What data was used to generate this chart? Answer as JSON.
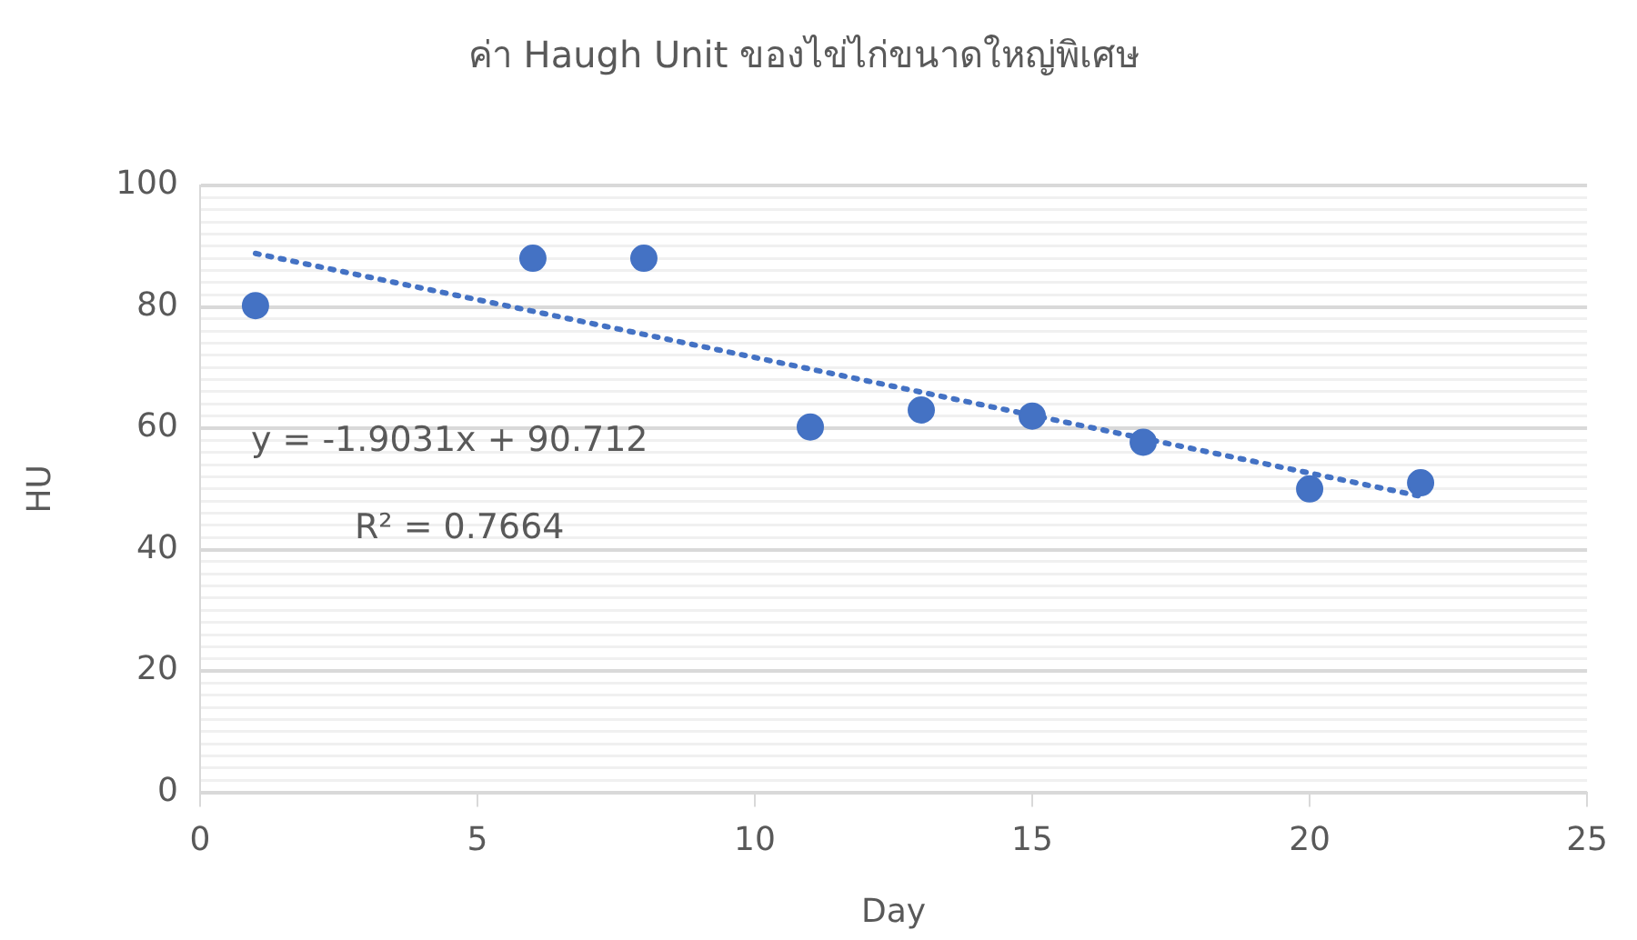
{
  "chart_data": {
    "type": "scatter",
    "title": "ค่า Haugh Unit ของไข่ไก่ขนาดใหญ่พิเศษ",
    "xlabel": "Day",
    "ylabel": "HU",
    "x": [
      1,
      6,
      8,
      11,
      13,
      15,
      17,
      20,
      22
    ],
    "series": [
      {
        "type": "scatter",
        "color": "#4472c4",
        "marker": "circle",
        "values": [
          80.2,
          88,
          88,
          60.2,
          63,
          62,
          57.7,
          50,
          51
        ]
      },
      {
        "type": "line",
        "color": "#4472c4",
        "line_style": "dotted",
        "marker": "none",
        "x": [
          1,
          22
        ],
        "values": [
          88.8,
          48.8
        ]
      }
    ],
    "xlim": [
      0,
      25
    ],
    "xticks": [
      0,
      5,
      10,
      15,
      20,
      25
    ],
    "ylim": [
      0,
      100
    ],
    "yticks": [
      0,
      {
        "value": 2,
        "label": null
      },
      {
        "value": 4,
        "label": null
      },
      {
        "value": 6,
        "label": null
      },
      {
        "value": 8,
        "label": null
      },
      {
        "value": 10,
        "label": null
      },
      {
        "value": 12,
        "label": null
      },
      {
        "value": 14,
        "label": null
      },
      {
        "value": 16,
        "label": null
      },
      {
        "value": 18,
        "label": null
      },
      20,
      {
        "value": 22,
        "label": null
      },
      {
        "value": 24,
        "label": null
      },
      {
        "value": 26,
        "label": null
      },
      {
        "value": 28,
        "label": null
      },
      {
        "value": 30,
        "label": null
      },
      {
        "value": 32,
        "label": null
      },
      {
        "value": 34,
        "label": null
      },
      {
        "value": 36,
        "label": null
      },
      {
        "value": 38,
        "label": null
      },
      40,
      {
        "value": 42,
        "label": null
      },
      {
        "value": 44,
        "label": null
      },
      {
        "value": 46,
        "label": null
      },
      {
        "value": 48,
        "label": null
      },
      {
        "value": 50,
        "label": null
      },
      {
        "value": 52,
        "label": null
      },
      {
        "value": 54,
        "label": null
      },
      {
        "value": 56,
        "label": null
      },
      {
        "value": 58,
        "label": null
      },
      60,
      {
        "value": 62,
        "label": null
      },
      {
        "value": 64,
        "label": null
      },
      {
        "value": 66,
        "label": null
      },
      {
        "value": 68,
        "label": null
      },
      {
        "value": 70,
        "label": null
      },
      {
        "value": 72,
        "label": null
      },
      {
        "value": 74,
        "label": null
      },
      {
        "value": 76,
        "label": null
      },
      {
        "value": 78,
        "label": null
      },
      80,
      {
        "value": 82,
        "label": null
      },
      {
        "value": 84,
        "label": null
      },
      {
        "value": 86,
        "label": null
      },
      {
        "value": 88,
        "label": null
      },
      {
        "value": 90,
        "label": null
      },
      {
        "value": 92,
        "label": null
      },
      {
        "value": 94,
        "label": null
      },
      {
        "value": 96,
        "label": null
      },
      {
        "value": 98,
        "label": null
      },
      100
    ],
    "grid": "y",
    "legend": false,
    "annotations": [
      "y = -1.9031x + 90.712",
      "R² = 0.7664"
    ]
  }
}
